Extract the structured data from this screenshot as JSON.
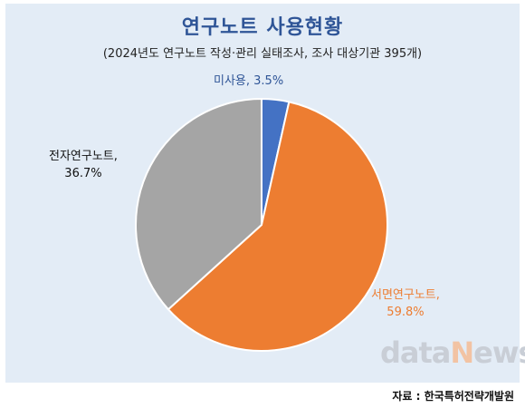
{
  "title": "연구노트 사용현황",
  "subtitle": "(2024년도 연구노트 작성·관리 실태조사, 조사 대상기관 395개)",
  "source": "자료 : 한국특허전략개발원",
  "watermark": {
    "part1": "data",
    "part2": "N",
    "part3": "ews"
  },
  "chart_data": {
    "type": "pie",
    "start_angle_deg": 0,
    "direction": "clockwise",
    "slices": [
      {
        "label": "미사용,",
        "value_label": "3.5%",
        "value": 3.5,
        "color": "#4472c4",
        "label_color": "#2f5597"
      },
      {
        "label": "서면연구노트,",
        "value_label": "59.8%",
        "value": 59.8,
        "color": "#ed7d31",
        "label_color": "#ed7d31"
      },
      {
        "label": "전자연구노트,",
        "value_label": "36.7%",
        "value": 36.7,
        "color": "#a5a5a5",
        "label_color": "#111111"
      }
    ]
  }
}
